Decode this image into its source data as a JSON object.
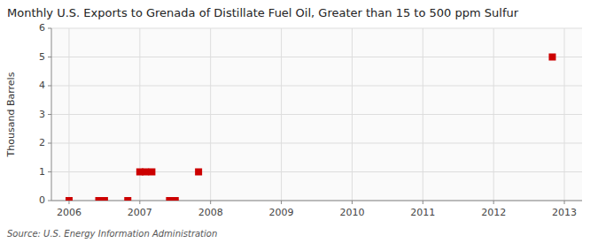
{
  "chart_data": {
    "type": "scatter",
    "title": "Monthly U.S. Exports to Grenada of Distillate Fuel Oil, Greater than 15 to 500 ppm Sulfur",
    "ylabel": "Thousand Barrels",
    "annotations": [
      "Source: U.S. Energy Information Administration"
    ],
    "x": [
      2006.0,
      2006.42,
      2006.5,
      2006.83,
      2007.0,
      2007.08,
      2007.17,
      2007.42,
      2007.5,
      2007.83,
      2012.83
    ],
    "values": [
      0,
      0,
      0,
      0,
      1,
      1,
      1,
      0,
      0,
      1,
      5
    ],
    "color": "#cc0000",
    "marker": "square",
    "xlim": [
      2005.75,
      2013.25
    ],
    "xticks": [
      2006,
      2007,
      2008,
      2009,
      2010,
      2011,
      2012,
      2013
    ],
    "ylim": [
      0,
      6
    ],
    "yticks": [
      0,
      1,
      2,
      3,
      4,
      5,
      6
    ],
    "grid": true
  }
}
